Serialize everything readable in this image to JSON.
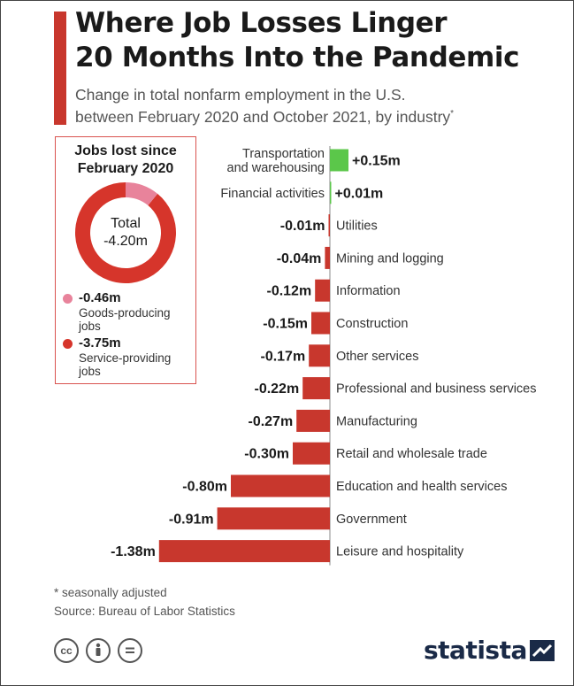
{
  "title": "Where Job Losses Linger 20 Months Into the Pandemic",
  "title_line1": "Where Job Losses Linger",
  "title_line2": "20 Months Into the Pandemic",
  "subtitle_line1": "Change in total nonfarm employment in the U.S.",
  "subtitle_line2": "between February 2020 and October 2021, by industry",
  "subtitle_asterisk": "*",
  "donut": {
    "title_line1": "Jobs lost since",
    "title_line2": "February 2020",
    "total_label": "Total",
    "total_value": "-4.20m",
    "goods": {
      "value_label": "-0.46m",
      "label": "Goods-producing jobs",
      "value": 0.46,
      "color": "#e8839b"
    },
    "services": {
      "value_label": "-3.75m",
      "label": "Service-providing jobs",
      "value": 3.75,
      "color": "#d6352b"
    }
  },
  "chart_data": {
    "type": "bar",
    "orientation": "horizontal",
    "unit": "m",
    "categories": [
      "Transportation and warehousing",
      "Financial activities",
      "Utilities",
      "Mining and logging",
      "Information",
      "Construction",
      "Other services",
      "Professional and business services",
      "Manufacturing",
      "Retail and wholesale trade",
      "Education and health services",
      "Government",
      "Leisure and hospitality"
    ],
    "category_lines": [
      [
        "Transportation",
        "and warehousing"
      ],
      [
        "Financial activities"
      ],
      [
        "Utilities"
      ],
      [
        "Mining and logging"
      ],
      [
        "Information"
      ],
      [
        "Construction"
      ],
      [
        "Other services"
      ],
      [
        "Professional and business services"
      ],
      [
        "Manufacturing"
      ],
      [
        "Retail and wholesale trade"
      ],
      [
        "Education and health services"
      ],
      [
        "Government"
      ],
      [
        "Leisure and hospitality"
      ]
    ],
    "values": [
      0.15,
      0.01,
      -0.01,
      -0.04,
      -0.12,
      -0.15,
      -0.17,
      -0.22,
      -0.27,
      -0.3,
      -0.8,
      -0.91,
      -1.38
    ],
    "value_labels": [
      "+0.15m",
      "+0.01m",
      "-0.01m",
      "-0.04m",
      "-0.12m",
      "-0.15m",
      "-0.17m",
      "-0.22m",
      "-0.27m",
      "-0.30m",
      "-0.80m",
      "-0.91m",
      "-1.38m"
    ],
    "colors": {
      "positive": "#5bc74a",
      "negative": "#c8372d"
    }
  },
  "footnote": "* seasonally adjusted",
  "source": "Source: Bureau of Labor Statistics",
  "license_icons": [
    "cc-icon",
    "attribution-icon",
    "no-derivatives-icon"
  ],
  "logo": "statista"
}
